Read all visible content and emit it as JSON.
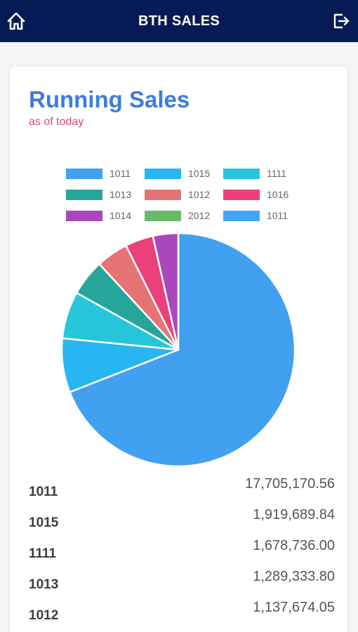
{
  "header": {
    "title": "BTH SALES",
    "home_icon": "home-icon",
    "logout_icon": "logout-icon",
    "background": "#061a55"
  },
  "card": {
    "title": "Running Sales",
    "subtitle": "as of today",
    "title_color": "#3f7be0",
    "subtitle_color": "#e0457b"
  },
  "chart_data": {
    "type": "pie",
    "legend_placement": "top",
    "categories": [
      "1011",
      "1015",
      "1111",
      "1013",
      "1012",
      "1016",
      "1014",
      "2012",
      "1011"
    ],
    "values": [
      17705170.56,
      1919689.84,
      1678736.0,
      1289333.8,
      1137674.05,
      1000000,
      900000,
      0,
      0
    ],
    "colors": [
      "#42a0f0",
      "#27b6f2",
      "#26c6da",
      "#26a69a",
      "#e57373",
      "#ec407a",
      "#ab47bc",
      "#66bb6a",
      "#42a5f5"
    ]
  },
  "rows": [
    {
      "code": "1011",
      "value": "17,705,170.56"
    },
    {
      "code": "1015",
      "value": "1,919,689.84"
    },
    {
      "code": "1111",
      "value": "1,678,736.00"
    },
    {
      "code": "1013",
      "value": "1,289,333.80"
    },
    {
      "code": "1012",
      "value": "1,137,674.05"
    }
  ]
}
